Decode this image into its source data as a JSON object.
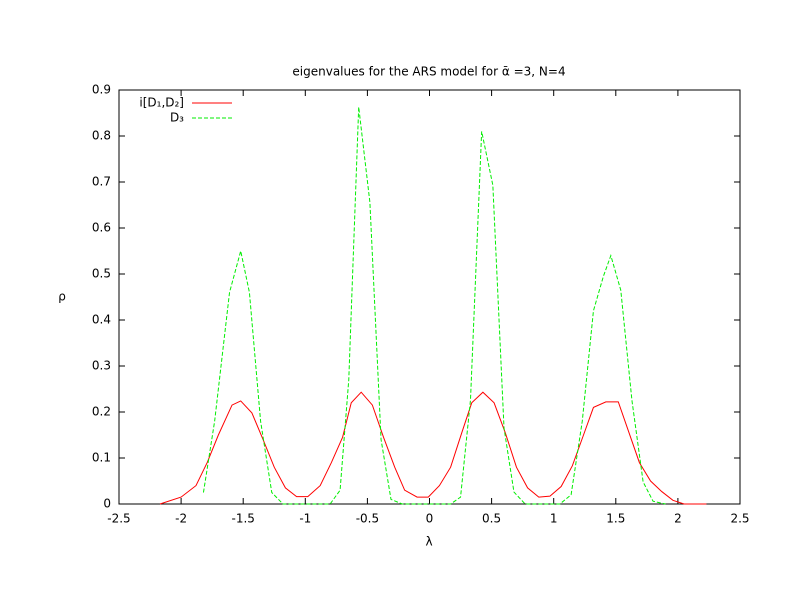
{
  "chart_data": {
    "type": "line",
    "title": "eigenvalues for the ARS model for ᾱ =3, N=4",
    "x_label": "λ",
    "y_label": "ρ",
    "xlim": [
      -2.5,
      2.5
    ],
    "ylim": [
      0,
      0.9
    ],
    "xticks": [
      -2.5,
      -2,
      -1.5,
      -1,
      -0.5,
      0,
      0.5,
      1,
      1.5,
      2,
      2.5
    ],
    "yticks": [
      0,
      0.1,
      0.2,
      0.3,
      0.4,
      0.5,
      0.6,
      0.7,
      0.8,
      0.9
    ],
    "legend": "top-left",
    "series": [
      {
        "name": "i[D₁,D₂]",
        "color": "#ff0000",
        "dash": false,
        "x": [
          -2.17,
          -2.0,
          -1.88,
          -1.79,
          -1.7,
          -1.59,
          -1.52,
          -1.43,
          -1.34,
          -1.25,
          -1.16,
          -1.07,
          -0.98,
          -0.88,
          -0.79,
          -0.7,
          -0.63,
          -0.55,
          -0.46,
          -0.37,
          -0.28,
          -0.2,
          -0.1,
          -0.01,
          0.08,
          0.17,
          0.26,
          0.34,
          0.43,
          0.52,
          0.61,
          0.7,
          0.79,
          0.88,
          0.97,
          1.06,
          1.15,
          1.24,
          1.32,
          1.42,
          1.52,
          1.6,
          1.69,
          1.78,
          1.87,
          1.96,
          2.05,
          2.14,
          2.23
        ],
        "values": [
          0,
          0.015,
          0.04,
          0.09,
          0.15,
          0.215,
          0.224,
          0.198,
          0.14,
          0.08,
          0.035,
          0.016,
          0.016,
          0.04,
          0.09,
          0.145,
          0.22,
          0.243,
          0.215,
          0.145,
          0.08,
          0.03,
          0.015,
          0.015,
          0.04,
          0.08,
          0.155,
          0.22,
          0.243,
          0.22,
          0.155,
          0.08,
          0.035,
          0.015,
          0.017,
          0.038,
          0.083,
          0.15,
          0.21,
          0.222,
          0.222,
          0.16,
          0.09,
          0.05,
          0.027,
          0.008,
          0,
          0,
          0
        ]
      },
      {
        "name": "D₃",
        "color": "#00ee00",
        "dash": true,
        "x": [
          -1.82,
          -1.73,
          -1.61,
          -1.52,
          -1.45,
          -1.36,
          -1.27,
          -1.18,
          -1.0,
          -0.8,
          -0.72,
          -0.65,
          -0.57,
          -0.48,
          -0.39,
          -0.31,
          -0.22,
          0.0,
          0.17,
          0.25,
          0.33,
          0.42,
          0.51,
          0.6,
          0.68,
          0.77,
          1.05,
          1.14,
          1.23,
          1.32,
          1.4,
          1.46,
          1.54,
          1.63,
          1.72,
          1.8,
          1.9
        ],
        "values": [
          0.025,
          0.18,
          0.46,
          0.55,
          0.46,
          0.18,
          0.025,
          0,
          0,
          0,
          0.03,
          0.27,
          0.863,
          0.656,
          0.14,
          0.01,
          0,
          0,
          0,
          0.015,
          0.226,
          0.81,
          0.693,
          0.165,
          0.026,
          0,
          0,
          0.02,
          0.18,
          0.42,
          0.495,
          0.54,
          0.465,
          0.225,
          0.048,
          0.006,
          0
        ]
      }
    ]
  }
}
